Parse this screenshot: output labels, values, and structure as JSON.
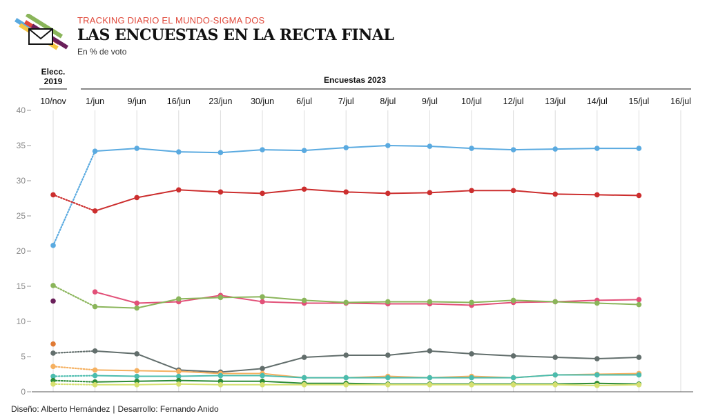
{
  "header": {
    "kicker": "TRACKING DIARIO EL MUNDO-SIGMA DOS",
    "title": "LAS ENCUESTAS EN LA RECTA FINAL",
    "subtitle": "En % de voto"
  },
  "footer": {
    "design": "Diseño: Alberto Hernández",
    "separator": "|",
    "development": "Desarrollo: Fernando Anido"
  },
  "logo": {
    "icon": "envelope-icon"
  },
  "chart_data": {
    "type": "line",
    "title": "LAS ENCUESTAS EN LA RECTA FINAL",
    "ylabel": "En % de voto",
    "ylim": [
      0,
      40
    ],
    "yticks": [
      0,
      5,
      10,
      15,
      20,
      25,
      30,
      35,
      40
    ],
    "grid": true,
    "groups": [
      {
        "label_line1": "Elecc.",
        "label_line2": "2019",
        "categories": [
          "10/nov"
        ]
      },
      {
        "label": "Encuestas 2023",
        "categories": [
          "1/jun",
          "9/jun",
          "16/jun",
          "23/jun",
          "30/jun",
          "6/jul",
          "7/jul",
          "8/jul",
          "9/jul",
          "10/jul",
          "12/jul",
          "13/jul",
          "14/jul",
          "15/jul",
          "16/jul"
        ]
      }
    ],
    "categories": [
      "10/nov",
      "1/jun",
      "9/jun",
      "16/jun",
      "23/jun",
      "30/jun",
      "6/jul",
      "7/jul",
      "8/jul",
      "9/jul",
      "10/jul",
      "12/jul",
      "13/jul",
      "14/jul",
      "15/jul",
      "16/jul"
    ],
    "series": [
      {
        "color": "#5aaae0",
        "values": [
          20.8,
          34.2,
          34.6,
          34.1,
          34.0,
          34.4,
          34.3,
          34.7,
          35.0,
          34.9,
          34.6,
          34.4,
          34.5,
          34.6,
          34.6,
          null
        ]
      },
      {
        "color": "#cc2e2e",
        "values": [
          28.0,
          25.7,
          27.6,
          28.7,
          28.4,
          28.2,
          28.8,
          28.4,
          28.2,
          28.3,
          28.6,
          28.6,
          28.1,
          28.0,
          27.9,
          null
        ]
      },
      {
        "color": "#e25078",
        "values": [
          null,
          14.2,
          12.6,
          12.8,
          13.7,
          12.8,
          12.6,
          12.6,
          12.5,
          12.5,
          12.3,
          12.7,
          12.8,
          13.0,
          13.1,
          null
        ]
      },
      {
        "color": "#8ab55a",
        "values": [
          15.1,
          12.1,
          11.9,
          13.2,
          13.4,
          13.5,
          13.0,
          12.7,
          12.8,
          12.8,
          12.7,
          13.0,
          12.8,
          12.6,
          12.4,
          null
        ]
      },
      {
        "color": "#6a1f5a",
        "values": [
          12.9,
          null,
          null,
          null,
          null,
          null,
          null,
          null,
          null,
          null,
          null,
          null,
          null,
          null,
          null,
          null
        ]
      },
      {
        "color": "#e07a34",
        "values": [
          6.8,
          null,
          null,
          null,
          null,
          null,
          null,
          null,
          null,
          null,
          null,
          null,
          null,
          null,
          null,
          null
        ]
      },
      {
        "color": "#626e6c",
        "values": [
          5.5,
          5.8,
          5.4,
          3.1,
          2.8,
          3.3,
          4.9,
          5.2,
          5.2,
          5.8,
          5.4,
          5.1,
          4.9,
          4.7,
          4.9,
          null
        ]
      },
      {
        "color": "#f5b060",
        "values": [
          3.6,
          3.1,
          3.0,
          2.9,
          2.6,
          2.6,
          2.0,
          2.0,
          2.2,
          2.0,
          2.2,
          2.0,
          2.4,
          2.5,
          2.6,
          null
        ]
      },
      {
        "color": "#4bbcae",
        "values": [
          2.2,
          2.3,
          2.2,
          2.2,
          2.3,
          2.3,
          2.0,
          2.0,
          2.0,
          2.0,
          2.0,
          2.0,
          2.4,
          2.4,
          2.4,
          null
        ]
      },
      {
        "color": "#2e8c38",
        "values": [
          1.6,
          1.4,
          1.5,
          1.6,
          1.5,
          1.5,
          1.2,
          1.2,
          1.1,
          1.1,
          1.1,
          1.1,
          1.1,
          1.2,
          1.1,
          null
        ]
      },
      {
        "color": "#d6e070",
        "values": [
          1.1,
          1.0,
          1.0,
          1.1,
          1.0,
          1.0,
          1.0,
          1.0,
          1.0,
          1.0,
          1.0,
          1.0,
          1.0,
          0.9,
          1.0,
          null
        ]
      }
    ]
  }
}
